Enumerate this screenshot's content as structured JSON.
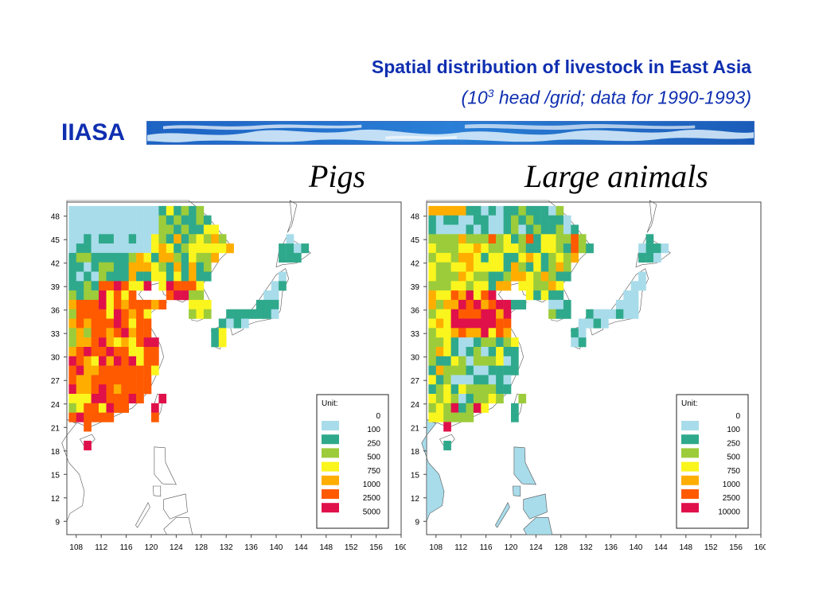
{
  "header": {
    "title": "Spatial distribution of livestock in East Asia",
    "subtitle_prefix": "(10",
    "subtitle_sup": "3",
    "subtitle_suffix": " head /grid; data for 1990-1993)",
    "brand": "IIASA"
  },
  "colors": {
    "text_blue": "#0f2fb0",
    "classes": [
      "#a8dcea",
      "#2fa98c",
      "#9ccc3a",
      "#fbf51e",
      "#ffae00",
      "#ff5a00",
      "#e0104a"
    ],
    "land": "#ffffff",
    "coast": "#555555"
  },
  "axes": {
    "lon_ticks": [
      "108",
      "112",
      "116",
      "120",
      "124",
      "128",
      "132",
      "136",
      "140",
      "144",
      "148",
      "152",
      "156",
      "160"
    ],
    "lat_ticks": [
      "48",
      "45",
      "42",
      "39",
      "36",
      "33",
      "30",
      "27",
      "24",
      "21",
      "18",
      "15",
      "12",
      "9"
    ]
  },
  "maps": [
    {
      "title": "Pigs",
      "legend": {
        "title": "Unit:",
        "labels": [
          "0",
          "100",
          "250",
          "500",
          "750",
          "1000",
          "2500",
          "5000"
        ]
      }
    },
    {
      "title": "Large animals",
      "legend": {
        "title": "Unit:",
        "labels": [
          "0",
          "100",
          "250",
          "500",
          "750",
          "1000",
          "2500",
          "10000"
        ]
      }
    }
  ]
}
